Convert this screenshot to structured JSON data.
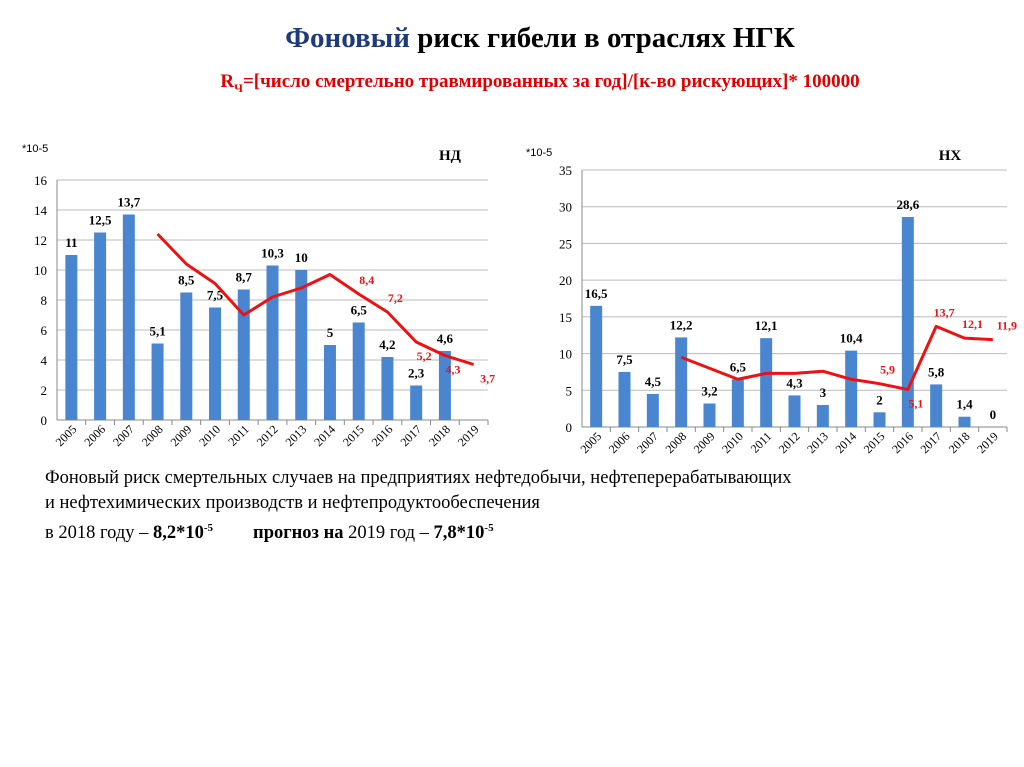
{
  "title": {
    "part1": "Фоновый",
    "part2": " риск гибели в отраслях  НГК"
  },
  "subtitle": {
    "r": "R",
    "r_sub": "Ч",
    "rest": "=[число смертельно травмированных за год]/[к-во рискующих]* 100000"
  },
  "chart_data": [
    {
      "type": "bar+line",
      "title": "НД",
      "unit_label": "*10-5",
      "categories": [
        "2005",
        "2006",
        "2007",
        "2008",
        "2009",
        "2010",
        "2011",
        "2012",
        "2013",
        "2014",
        "2015",
        "2016",
        "2017",
        "2018",
        "2019"
      ],
      "ylim": [
        0,
        16
      ],
      "yticks": [
        0,
        2,
        4,
        6,
        8,
        10,
        12,
        14,
        16
      ],
      "grid": true,
      "bars": {
        "values": [
          11,
          12.5,
          13.7,
          5.1,
          8.5,
          7.5,
          8.7,
          10.3,
          10,
          5,
          6.5,
          4.2,
          2.3,
          4.6,
          null
        ],
        "labels": [
          "11",
          "12,5",
          "13,7",
          "5,1",
          "8,5",
          "7,5",
          "8,7",
          "10,3",
          "10",
          "5",
          "6,5",
          "4,2",
          "2,3",
          "4,6",
          ""
        ],
        "color": "#4a86d0"
      },
      "line": {
        "values": [
          null,
          null,
          null,
          12.4,
          10.4,
          9.1,
          7.0,
          8.2,
          8.8,
          9.7,
          8.4,
          7.2,
          5.2,
          4.3,
          3.7
        ],
        "labels": [
          "",
          "",
          "",
          "",
          "",
          "",
          "",
          "",
          "",
          "",
          "8,4",
          "7,2",
          "5,2",
          "4,3",
          "3,7"
        ],
        "color": "#ee1111"
      }
    },
    {
      "type": "bar+line",
      "title": "НХ",
      "unit_label": "*10-5",
      "categories": [
        "2005",
        "2006",
        "2007",
        "2008",
        "2009",
        "2010",
        "2011",
        "2012",
        "2013",
        "2014",
        "2015",
        "2016",
        "2017",
        "2018",
        "2019"
      ],
      "ylim": [
        0,
        35
      ],
      "yticks": [
        0,
        5,
        10,
        15,
        20,
        25,
        30,
        35
      ],
      "grid": true,
      "bars": {
        "values": [
          16.5,
          7.5,
          4.5,
          12.2,
          3.2,
          6.5,
          12.1,
          4.3,
          3,
          10.4,
          2,
          28.6,
          5.8,
          1.4,
          0
        ],
        "labels": [
          "16,5",
          "7,5",
          "4,5",
          "12,2",
          "3,2",
          "6,5",
          "12,1",
          "4,3",
          "3",
          "10,4",
          "2",
          "28,6",
          "5,8",
          "1,4",
          "0"
        ],
        "color": "#4a86d0"
      },
      "line": {
        "values": [
          null,
          null,
          null,
          9.5,
          8.0,
          6.5,
          7.3,
          7.3,
          7.6,
          6.5,
          5.9,
          5.1,
          13.7,
          12.1,
          11.9
        ],
        "labels": [
          "",
          "",
          "",
          "",
          "",
          "",
          "",
          "",
          "",
          "",
          "5,9",
          "5,1",
          "13,7",
          "12,1",
          "11,9"
        ],
        "color": "#ee1111"
      }
    }
  ],
  "paragraph": {
    "line1": "Фоновый риск смертельных случаев на предприятиях нефтедобычи, нефтеперерабатывающих",
    "line2": "и нефтехимических производств и нефтепродуктообеспечения",
    "line3a": "в 2018 году – ",
    "val2018": "8,2*10",
    "exp": "-5",
    "forecast_label": "прогноз на",
    "line3b": " 2019 год –  ",
    "val2019": "7,8*10"
  }
}
